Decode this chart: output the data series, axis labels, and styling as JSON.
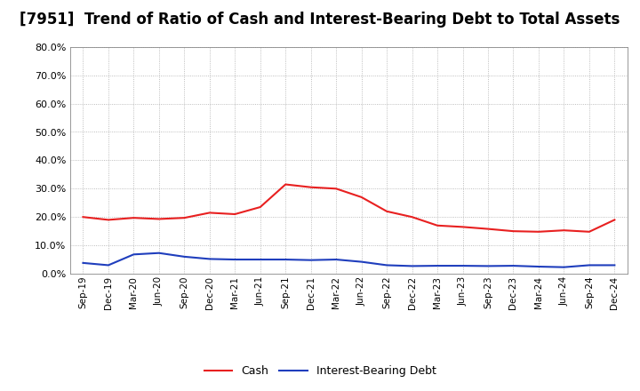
{
  "title": "[7951]  Trend of Ratio of Cash and Interest-Bearing Debt to Total Assets",
  "x_labels": [
    "Sep-19",
    "Dec-19",
    "Mar-20",
    "Jun-20",
    "Sep-20",
    "Dec-20",
    "Mar-21",
    "Jun-21",
    "Sep-21",
    "Dec-21",
    "Mar-22",
    "Jun-22",
    "Sep-22",
    "Dec-22",
    "Mar-23",
    "Jun-23",
    "Sep-23",
    "Dec-23",
    "Mar-24",
    "Jun-24",
    "Sep-24",
    "Dec-24"
  ],
  "cash": [
    0.2,
    0.19,
    0.197,
    0.193,
    0.197,
    0.215,
    0.21,
    0.235,
    0.315,
    0.305,
    0.3,
    0.27,
    0.22,
    0.2,
    0.17,
    0.165,
    0.158,
    0.15,
    0.148,
    0.153,
    0.148,
    0.19
  ],
  "ibd": [
    0.038,
    0.03,
    0.068,
    0.073,
    0.06,
    0.052,
    0.05,
    0.05,
    0.05,
    0.048,
    0.05,
    0.042,
    0.03,
    0.027,
    0.028,
    0.028,
    0.027,
    0.028,
    0.025,
    0.023,
    0.03,
    0.03
  ],
  "cash_color": "#e82020",
  "ibd_color": "#1f3ebd",
  "ylim": [
    0.0,
    0.8
  ],
  "yticks": [
    0.0,
    0.1,
    0.2,
    0.3,
    0.4,
    0.5,
    0.6,
    0.7,
    0.8
  ],
  "bg_color": "#ffffff",
  "grid_color": "#aaaaaa",
  "title_fontsize": 12,
  "legend_cash": "Cash",
  "legend_ibd": "Interest-Bearing Debt"
}
